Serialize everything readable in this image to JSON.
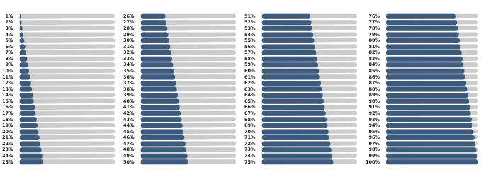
{
  "chart_data": [
    {
      "type": "bar",
      "orientation": "horizontal",
      "color": "#3c5a7c",
      "grid": false,
      "tick_labels": "y",
      "xlim": [
        0,
        100
      ],
      "categories": [
        "1%",
        "2%",
        "3%",
        "4%",
        "5%",
        "6%",
        "7%",
        "8%",
        "9%",
        "10%",
        "11%",
        "12%",
        "13%",
        "14%",
        "15%",
        "16%",
        "17%",
        "18%",
        "19%",
        "20%",
        "21%",
        "22%",
        "23%",
        "24%",
        "25%"
      ],
      "values": [
        1,
        2,
        3,
        4,
        5,
        6,
        7,
        8,
        9,
        10,
        11,
        12,
        13,
        14,
        15,
        16,
        17,
        18,
        19,
        20,
        21,
        22,
        23,
        24,
        25
      ]
    },
    {
      "type": "bar",
      "orientation": "horizontal",
      "color": "#3c5a7c",
      "grid": false,
      "tick_labels": "y",
      "xlim": [
        0,
        100
      ],
      "categories": [
        "26%",
        "27%",
        "28%",
        "29%",
        "30%",
        "31%",
        "32%",
        "33%",
        "34%",
        "35%",
        "36%",
        "37%",
        "38%",
        "39%",
        "40%",
        "41%",
        "42%",
        "43%",
        "44%",
        "45%",
        "46%",
        "47%",
        "48%",
        "49%",
        "50%"
      ],
      "values": [
        26,
        27,
        28,
        29,
        30,
        31,
        32,
        33,
        34,
        35,
        36,
        37,
        38,
        39,
        40,
        41,
        42,
        43,
        44,
        45,
        46,
        47,
        48,
        49,
        50
      ]
    },
    {
      "type": "bar",
      "orientation": "horizontal",
      "color": "#3c5a7c",
      "grid": false,
      "tick_labels": "y",
      "xlim": [
        0,
        100
      ],
      "categories": [
        "51%",
        "52%",
        "53%",
        "54%",
        "55%",
        "56%",
        "57%",
        "58%",
        "59%",
        "60%",
        "61%",
        "62%",
        "63%",
        "64%",
        "65%",
        "66%",
        "67%",
        "68%",
        "69%",
        "70%",
        "71%",
        "72%",
        "73%",
        "74%",
        "75%"
      ],
      "values": [
        51,
        52,
        53,
        54,
        55,
        56,
        57,
        58,
        59,
        60,
        61,
        62,
        63,
        64,
        65,
        66,
        67,
        68,
        69,
        70,
        71,
        72,
        73,
        74,
        75
      ]
    },
    {
      "type": "bar",
      "orientation": "horizontal",
      "color": "#3c5a7c",
      "grid": false,
      "tick_labels": "y",
      "xlim": [
        0,
        100
      ],
      "categories": [
        "76%",
        "77%",
        "78%",
        "79%",
        "80%",
        "81%",
        "82%",
        "83%",
        "84%",
        "85%",
        "86%",
        "87%",
        "88%",
        "89%",
        "90%",
        "91%",
        "92%",
        "93%",
        "94%",
        "95%",
        "96%",
        "97%",
        "98%",
        "99%",
        "100%"
      ],
      "values": [
        76,
        77,
        78,
        79,
        80,
        81,
        82,
        83,
        84,
        85,
        86,
        87,
        88,
        89,
        90,
        91,
        92,
        93,
        94,
        95,
        96,
        97,
        98,
        99,
        100
      ]
    }
  ]
}
